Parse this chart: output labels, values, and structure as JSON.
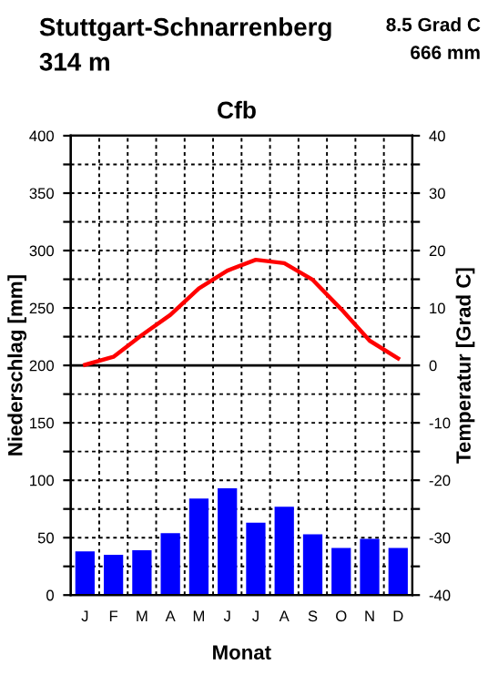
{
  "chart_data": {
    "type": "bar",
    "title": "Stuttgart-Schnarrenberg",
    "subtitle": "314 m",
    "annotations": [
      "8.5 Grad C",
      "666 mm",
      "Cfb"
    ],
    "xlabel": "Monat",
    "ylabel": "Niederschlag [mm]",
    "y2label": "Temperatur [Grad C]",
    "categories": [
      "J",
      "F",
      "M",
      "A",
      "M",
      "J",
      "J",
      "A",
      "S",
      "O",
      "N",
      "D"
    ],
    "series": [
      {
        "color": "#0000ff",
        "values": [
          38,
          35,
          39,
          54,
          84,
          93,
          63,
          77,
          53,
          41,
          49,
          41
        ]
      },
      {
        "type": "line",
        "axis": "y2",
        "color": "#ff0000",
        "values": [
          0.1,
          1.5,
          5.3,
          8.8,
          13.4,
          16.5,
          18.4,
          17.8,
          14.9,
          9.8,
          4.3,
          1.2
        ]
      }
    ],
    "ylim": [
      0,
      400
    ],
    "yticks": [
      0,
      {
        "value": 25,
        "label": null
      },
      50,
      {
        "value": 75,
        "label": null
      },
      100,
      {
        "value": 125,
        "label": null
      },
      150,
      {
        "value": 175,
        "label": null
      },
      200,
      {
        "value": 225,
        "label": null
      },
      250,
      {
        "value": 275,
        "label": null
      },
      300,
      {
        "value": 325,
        "label": null
      },
      350,
      {
        "value": 375,
        "label": null
      },
      400
    ],
    "y2lim": [
      -40,
      40
    ],
    "y2ticks": [
      -40,
      {
        "value": -35,
        "label": null
      },
      -30,
      {
        "value": -25,
        "label": null
      },
      -20,
      {
        "value": -15,
        "label": null
      },
      -10,
      {
        "value": -5,
        "label": null
      },
      0,
      {
        "value": 5,
        "label": null
      },
      10,
      {
        "value": 15,
        "label": null
      },
      20,
      {
        "value": 25,
        "label": null
      },
      30,
      {
        "value": 35,
        "label": null
      },
      40
    ],
    "ref_lines": [
      {
        "axis": "y2",
        "value": 0,
        "color": "#000000",
        "line_style": "solid"
      }
    ],
    "grid": true,
    "legend": false,
    "marker": "none",
    "line_style": "solid"
  }
}
